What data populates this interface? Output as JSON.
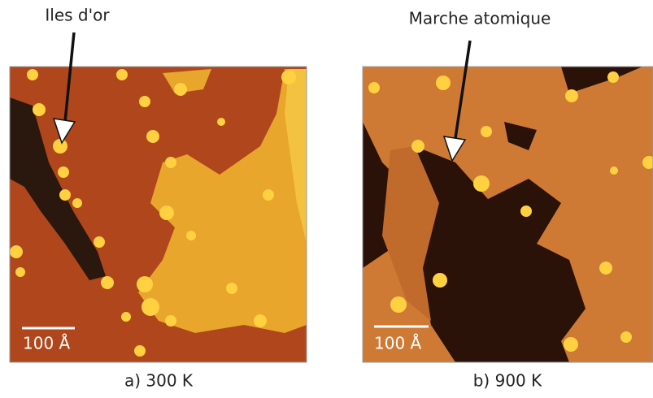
{
  "panels": [
    {
      "annotation": "Iles d'or",
      "scale_label": "100 Å",
      "caption": "a) 300 K"
    },
    {
      "annotation": "Marche atomique",
      "scale_label": "100 Å",
      "caption": "b) 900 K"
    }
  ]
}
